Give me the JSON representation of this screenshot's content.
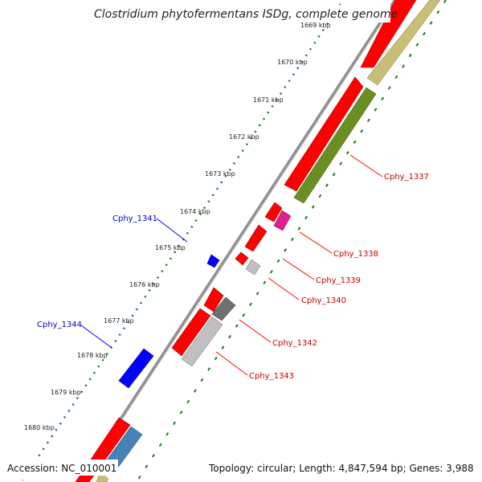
{
  "title": "Clostridium phytofermentans ISDg, complete genome",
  "footer": {
    "accession": "Accession: NC_010001",
    "summary": "Topology: circular; Length: 4,847,594 bp; Genes: 3,988"
  },
  "ticks": [
    "1669 kbp",
    "1670 kbp",
    "1671 kbp",
    "1672 kbp",
    "1673 kbp",
    "1674 kbp",
    "1675 kbp",
    "1676 kbp",
    "1677 kbp",
    "1678 kbp",
    "1679 kbp",
    "1680 kbp"
  ],
  "gene_labels": {
    "cphy_1337": "Cphy_1337",
    "cphy_1338": "Cphy_1338",
    "cphy_1339": "Cphy_1339",
    "cphy_1340": "Cphy_1340",
    "cphy_1341": "Cphy_1341",
    "cphy_1342": "Cphy_1342",
    "cphy_1343": "Cphy_1343",
    "cphy_1344": "Cphy_1344"
  },
  "colors": {
    "forward_cds": "#ff0000",
    "reverse_cds": "#0000ff",
    "cog_olive": "#6b8e23",
    "cog_khaki": "#c8be78",
    "cog_magenta": "#e0208c",
    "cog_grey": "#c0c0c0",
    "cog_dark_grey": "#707070",
    "cog_steel_blue": "#4682b4",
    "backbone": "#808080",
    "tick_marks": "#1a7a1a",
    "label_red": "#cc0000",
    "label_blue": "#0000cc"
  }
}
